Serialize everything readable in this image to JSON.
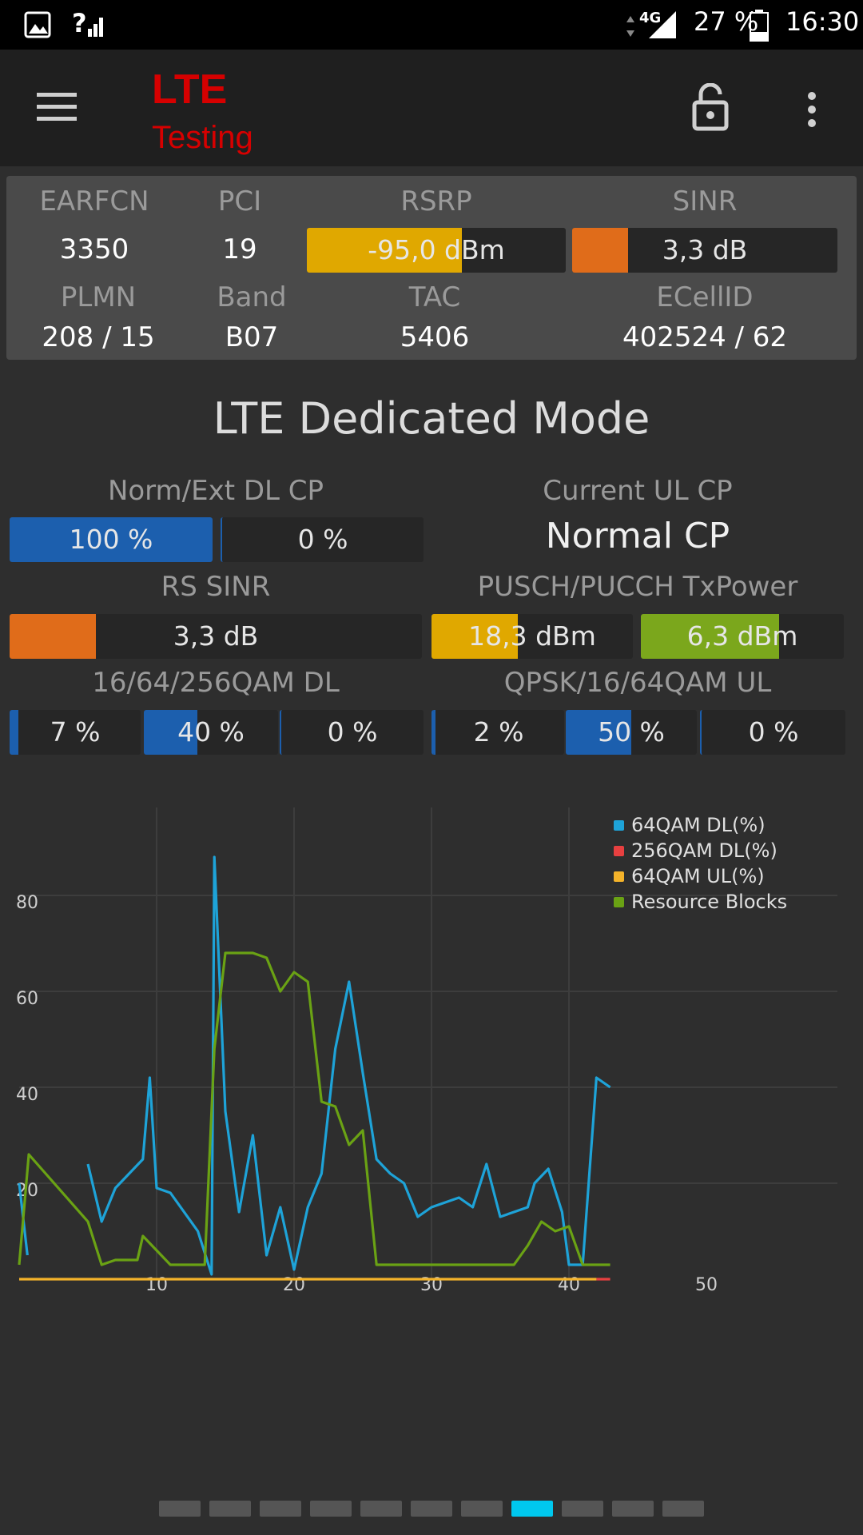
{
  "status_bar": {
    "network_label": "4G",
    "battery": "27 %",
    "time": "16:30",
    "signal_unknown_mark": "?"
  },
  "app_bar": {
    "title": "LTE",
    "subtitle": "Testing",
    "menu_icon": "hamburger-icon",
    "lock_icon": "lock-open-icon",
    "more_icon": "more-vert-icon"
  },
  "cell_info": {
    "earfcn": {
      "label": "EARFCN",
      "value": "3350"
    },
    "pci": {
      "label": "PCI",
      "value": "19"
    },
    "rsrp": {
      "label": "RSRP",
      "value": "-95,0 dBm",
      "fill_fraction": 0.6,
      "color": "#e0a800"
    },
    "sinr": {
      "label": "SINR",
      "value": "3,3 dB",
      "fill_fraction": 0.21,
      "color": "#e06c1a"
    },
    "plmn": {
      "label": "PLMN",
      "value": "208 / 15"
    },
    "band": {
      "label": "Band",
      "value": "B07"
    },
    "tac": {
      "label": "TAC",
      "value": "5406"
    },
    "ecellid": {
      "label": "ECellID",
      "value": "402524 / 62"
    }
  },
  "mode_title": "LTE Dedicated Mode",
  "dl_cp": {
    "label": "Norm/Ext DL CP",
    "norm": {
      "value": "100 %",
      "fill_fraction": 1.0
    },
    "ext": {
      "value": "0 %",
      "fill_fraction": 0.0
    }
  },
  "ul_cp": {
    "label": "Current UL CP",
    "value": "Normal CP"
  },
  "rs_sinr": {
    "label": "RS SINR",
    "value": "3,3 dB",
    "fill_fraction": 0.21
  },
  "tx_power": {
    "label": "PUSCH/PUCCH TxPower",
    "pusch": {
      "value": "18,3 dBm",
      "fill_fraction": 0.43,
      "color": "#e0a800"
    },
    "pucch": {
      "value": "6,3 dBm",
      "fill_fraction": 0.68,
      "color": "#7ba71c"
    }
  },
  "qam_dl": {
    "label": "16/64/256QAM DL",
    "cells": [
      {
        "value": "7 %",
        "fill_fraction": 0.07
      },
      {
        "value": "40 %",
        "fill_fraction": 0.4
      },
      {
        "value": "0 %",
        "fill_fraction": 0.0
      }
    ]
  },
  "qam_ul": {
    "label": "QPSK/16/64QAM UL",
    "cells": [
      {
        "value": "2 %",
        "fill_fraction": 0.02
      },
      {
        "value": "50 %",
        "fill_fraction": 0.5
      },
      {
        "value": "0 %",
        "fill_fraction": 0.0
      }
    ]
  },
  "colors": {
    "blue_fill": "#1c5fae",
    "orange_fill": "#e06c1a",
    "bar_bg": "#262626"
  },
  "chart_data": {
    "type": "line",
    "xlim": [
      0,
      60
    ],
    "ylim": [
      0,
      94
    ],
    "x_ticks": [
      "10",
      "20",
      "30",
      "40",
      "50"
    ],
    "y_ticks": [
      "20",
      "40",
      "60",
      "80"
    ],
    "grid": true,
    "legend_position": "top-right",
    "series": [
      {
        "name": "64QAM DL(%)",
        "color": "#1ea3d8",
        "points": [
          [
            0,
            20
          ],
          [
            0.6,
            5
          ],
          [
            null,
            null
          ],
          [
            5,
            24
          ],
          [
            6,
            12
          ],
          [
            7,
            19
          ],
          [
            9,
            25
          ],
          [
            9.5,
            42
          ],
          [
            10,
            19
          ],
          [
            11,
            18
          ],
          [
            13,
            10
          ],
          [
            14,
            1
          ],
          [
            14.2,
            88
          ],
          [
            15,
            35
          ],
          [
            16,
            14
          ],
          [
            17,
            30
          ],
          [
            18,
            5
          ],
          [
            19,
            15
          ],
          [
            20,
            2
          ],
          [
            21,
            15
          ],
          [
            22,
            22
          ],
          [
            23,
            48
          ],
          [
            24,
            62
          ],
          [
            25,
            43
          ],
          [
            26,
            25
          ],
          [
            27,
            22
          ],
          [
            28,
            20
          ],
          [
            29,
            13
          ],
          [
            30,
            15
          ],
          [
            31,
            16
          ],
          [
            32,
            17
          ],
          [
            33,
            15
          ],
          [
            34,
            24
          ],
          [
            35,
            13
          ],
          [
            36,
            14
          ],
          [
            37,
            15
          ],
          [
            37.5,
            20
          ],
          [
            38.5,
            23
          ],
          [
            39.5,
            14
          ],
          [
            40,
            3
          ],
          [
            41,
            3
          ],
          [
            42,
            42
          ],
          [
            43,
            40
          ]
        ]
      },
      {
        "name": "256QAM DL(%)",
        "color": "#e84040",
        "points": [
          [
            42,
            0
          ],
          [
            43,
            0
          ]
        ]
      },
      {
        "name": "64QAM UL(%)",
        "color": "#f4b32a",
        "points": [
          [
            0,
            0
          ],
          [
            42,
            0
          ]
        ]
      },
      {
        "name": "Resource Blocks",
        "color": "#6aa214",
        "points": [
          [
            0,
            3
          ],
          [
            0.7,
            26
          ],
          [
            5,
            12
          ],
          [
            6,
            3
          ],
          [
            7,
            4
          ],
          [
            8,
            4
          ],
          [
            8.6,
            4
          ],
          [
            9,
            9
          ],
          [
            10,
            6
          ],
          [
            11,
            3
          ],
          [
            13.5,
            3
          ],
          [
            14.2,
            48
          ],
          [
            15,
            68
          ],
          [
            17,
            68
          ],
          [
            18,
            67
          ],
          [
            19,
            60
          ],
          [
            20,
            64
          ],
          [
            21,
            62
          ],
          [
            22,
            37
          ],
          [
            23,
            36
          ],
          [
            24,
            28
          ],
          [
            25,
            31
          ],
          [
            26,
            3
          ],
          [
            36,
            3
          ],
          [
            37,
            7
          ],
          [
            38,
            12
          ],
          [
            39,
            10
          ],
          [
            40,
            11
          ],
          [
            41,
            3
          ],
          [
            43,
            3
          ]
        ]
      }
    ]
  },
  "pager": {
    "count": 11,
    "active_index": 7,
    "active_color": "#00c8ee"
  }
}
